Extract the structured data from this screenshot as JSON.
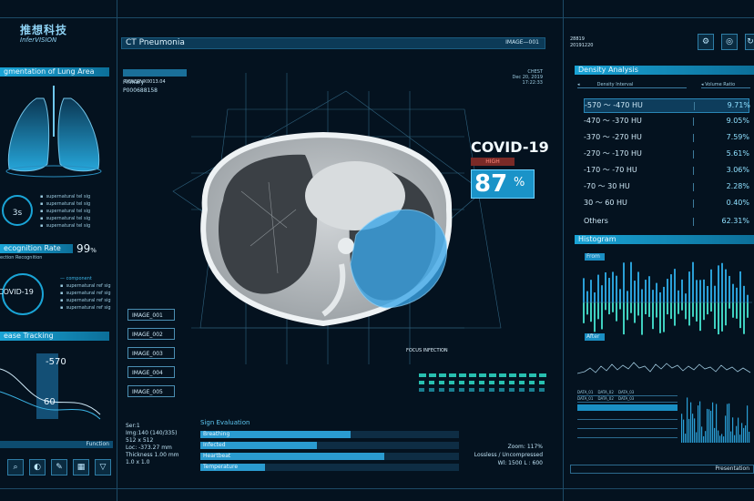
{
  "brand": {
    "logo_cn": "推想科技",
    "logo_en": "InferVISION"
  },
  "left": {
    "lung_title": "gmentation of Lung Area",
    "time_value": "3s",
    "recognition_title": "ecognition Rate",
    "recognition_sub": "ection Recognition",
    "recognition_value": "99",
    "recognition_unit": "%",
    "covid_label": "COVID-19",
    "tracking_title": "ease Tracking",
    "tracking_top": "-570",
    "tracking_bottom": "60",
    "function_label": "Function"
  },
  "main": {
    "title": "CT Pneumonia",
    "image_id": "IMAGE—001",
    "patient_id": "DENSRVX0013.04",
    "primary": "Primary",
    "patient_no": "P000688158",
    "chest": "CHEST",
    "date": "Dec 20, 2019",
    "time": "17:22:33",
    "covid_title": "COVID-19",
    "risk_badge": "HIGH",
    "covid_percent": "87",
    "covid_unit": "%",
    "focus_label": "FOCUS INFECTION",
    "images": [
      "IMAGE_001",
      "IMAGE_002",
      "IMAGE_003",
      "IMAGE_004",
      "IMAGE_005"
    ],
    "scan_info": [
      "Ser:1",
      "Img:140 (140/335)",
      "512 x 512",
      "Loc: -373.27 mm",
      "Thickness 1.00 mm",
      "1.0 x 1.0"
    ],
    "zoom_info": [
      "Zoom: 117%",
      "Lossless / Uncompressed",
      "Wl: 1500 L : 600"
    ],
    "sign_title": "Sign Evaluation",
    "signs": [
      {
        "label": "Breathing",
        "value": 0.58
      },
      {
        "label": "Infected",
        "value": 0.45
      },
      {
        "label": "Heartbeat",
        "value": 0.71
      },
      {
        "label": "Temperature",
        "value": 0.25
      }
    ]
  },
  "right": {
    "top_code": "28819",
    "top_code2": "20191220",
    "density_title": "Density Analysis",
    "density_interval": "Density Interval",
    "volume_ratio": "Volume Ratio",
    "density_rows": [
      {
        "range": "-570 ～ -470 HU",
        "ratio": "9.71%"
      },
      {
        "range": "-470 ～ -370 HU",
        "ratio": "9.05%"
      },
      {
        "range": "-370 ～ -270 HU",
        "ratio": "7.59%"
      },
      {
        "range": "-270 ～ -170 HU",
        "ratio": "5.61%"
      },
      {
        "range": "-170 ～ -70 HU",
        "ratio": "3.06%"
      },
      {
        "range": "-70 ～ 30 HU",
        "ratio": "2.28%"
      },
      {
        "range": "30 ～ 60 HU",
        "ratio": "0.40%"
      },
      {
        "range": "Others",
        "ratio": "62.31%"
      }
    ],
    "histogram_title": "Histogram",
    "from_label": "From",
    "after_label": "After",
    "presentation": "Presentation"
  },
  "colors": {
    "accent": "#1aa4d6",
    "high": "#d94b3d",
    "panel": "#04121f"
  }
}
